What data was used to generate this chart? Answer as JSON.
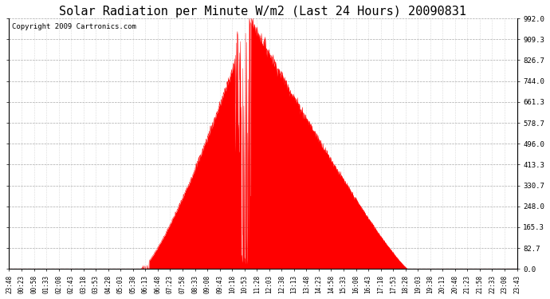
{
  "title": "Solar Radiation per Minute W/m2 (Last 24 Hours) 20090831",
  "copyright_text": "Copyright 2009 Cartronics.com",
  "fill_color": "#FF0000",
  "background_color": "#FFFFFF",
  "grid_color": "#AAAAAA",
  "grid_color_x": "#BBBBBB",
  "dashed_line_color": "#FF0000",
  "yticks": [
    0.0,
    82.7,
    165.3,
    248.0,
    330.7,
    413.3,
    496.0,
    578.7,
    661.3,
    744.0,
    826.7,
    909.3,
    992.0
  ],
  "ymax": 992.0,
  "ymin": 0.0,
  "xtick_labels": [
    "23:48",
    "00:23",
    "00:58",
    "01:33",
    "02:08",
    "02:43",
    "03:18",
    "03:53",
    "04:28",
    "05:03",
    "05:38",
    "06:13",
    "06:48",
    "07:23",
    "07:58",
    "08:33",
    "09:08",
    "09:43",
    "10:18",
    "10:53",
    "11:28",
    "12:03",
    "12:38",
    "13:13",
    "13:48",
    "14:23",
    "14:58",
    "15:33",
    "16:08",
    "16:43",
    "17:18",
    "17:53",
    "18:28",
    "19:03",
    "19:38",
    "20:13",
    "20:48",
    "21:23",
    "21:58",
    "22:33",
    "23:08",
    "23:43"
  ],
  "title_fontsize": 11,
  "copyright_fontsize": 6.5,
  "tick_fontsize": 5.5,
  "ytick_fontsize": 6.5
}
